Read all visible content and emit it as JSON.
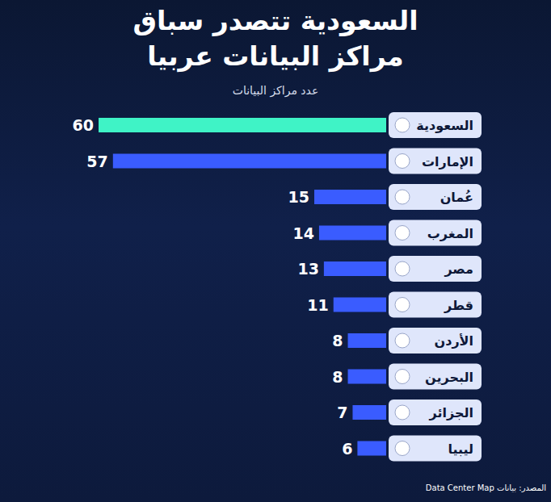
{
  "chart_data": {
    "type": "bar",
    "title": "السعودية تتصدر سباق مراكز البيانات عربيا",
    "subtitle": "عدد مراكز البيانات",
    "source": "المصدر: بيانات Data Center Map",
    "categories": [
      "السعودية",
      "الإمارات",
      "عُمان",
      "المغرب",
      "مصر",
      "قطر",
      "الأردن",
      "البحرين",
      "الجزائر",
      "ليبيا"
    ],
    "values": [
      60,
      57,
      15,
      14,
      13,
      11,
      8,
      8,
      7,
      6
    ],
    "colors": [
      "#3ff3c6",
      "#3a5cff",
      "#3a5cff",
      "#3a5cff",
      "#3a5cff",
      "#3a5cff",
      "#3a5cff",
      "#3a5cff",
      "#3a5cff",
      "#3a5cff"
    ],
    "orientation": "horizontal",
    "xlim": [
      0,
      60
    ],
    "data_labels": true,
    "tick_labels": "y",
    "grid": false
  }
}
